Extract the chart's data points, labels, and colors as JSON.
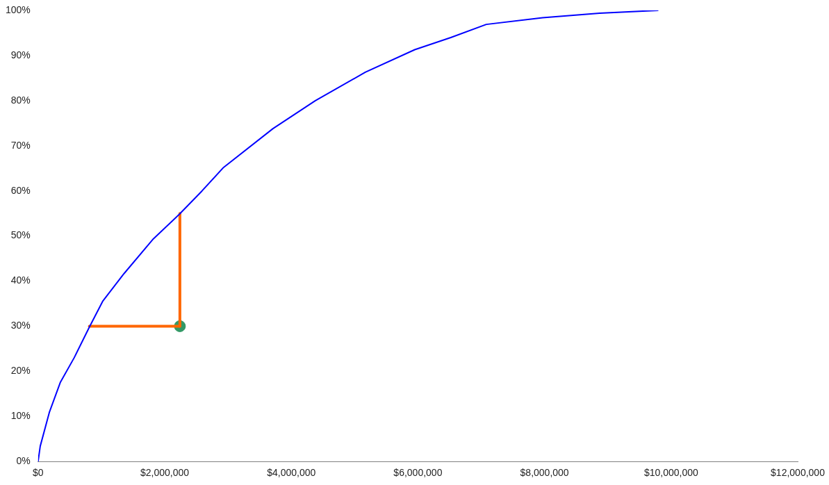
{
  "chart_data": {
    "type": "line",
    "series": [
      {
        "color": "#0000ff",
        "type": "line",
        "marker": "none",
        "x": [
          0,
          34000,
          180000,
          350000,
          570000,
          810000,
          1020000,
          1360000,
          1810000,
          2230000,
          2590000,
          2930000,
          3710000,
          4380000,
          5170000,
          5950000,
          6520000,
          7080000,
          7970000,
          8870000,
          9790000
        ],
        "values": [
          0,
          3.4,
          11,
          17.5,
          23,
          29.8,
          35.5,
          41.7,
          49.2,
          54.8,
          60,
          65.2,
          73.8,
          80,
          86.3,
          91.3,
          94,
          96.9,
          98.4,
          99.4,
          100
        ]
      },
      {
        "color": "#ff6600",
        "type": "line",
        "marker": "none",
        "x": [
          810000,
          2240000
        ],
        "values": [
          30,
          30
        ]
      },
      {
        "color": "#ff6600",
        "type": "line",
        "marker": "none",
        "x": [
          2240000,
          2240000
        ],
        "values": [
          30,
          55
        ]
      },
      {
        "color": "#339966",
        "type": "scatter",
        "marker": "circle",
        "x": [
          2240000
        ],
        "values": [
          30
        ]
      }
    ],
    "xlim": [
      0,
      12000000
    ],
    "xticks": [
      {
        "value": 0,
        "label": "$0"
      },
      {
        "value": 2000000,
        "label": "$2,000,000"
      },
      {
        "value": 4000000,
        "label": "$4,000,000"
      },
      {
        "value": 6000000,
        "label": "$6,000,000"
      },
      {
        "value": 8000000,
        "label": "$8,000,000"
      },
      {
        "value": 10000000,
        "label": "$10,000,000"
      },
      {
        "value": 12000000,
        "label": "$12,000,000"
      }
    ],
    "ylim": [
      0,
      100
    ],
    "yticks": [
      {
        "value": 0,
        "label": "0%"
      },
      {
        "value": 10,
        "label": "10%"
      },
      {
        "value": 20,
        "label": "20%"
      },
      {
        "value": 30,
        "label": "30%"
      },
      {
        "value": 40,
        "label": "40%"
      },
      {
        "value": 50,
        "label": "50%"
      },
      {
        "value": 60,
        "label": "60%"
      },
      {
        "value": 70,
        "label": "70%"
      },
      {
        "value": 80,
        "label": "80%"
      },
      {
        "value": 90,
        "label": "90%"
      },
      {
        "value": 100,
        "label": "100%"
      }
    ],
    "grid": false,
    "legend": false,
    "line_style": "solid"
  }
}
